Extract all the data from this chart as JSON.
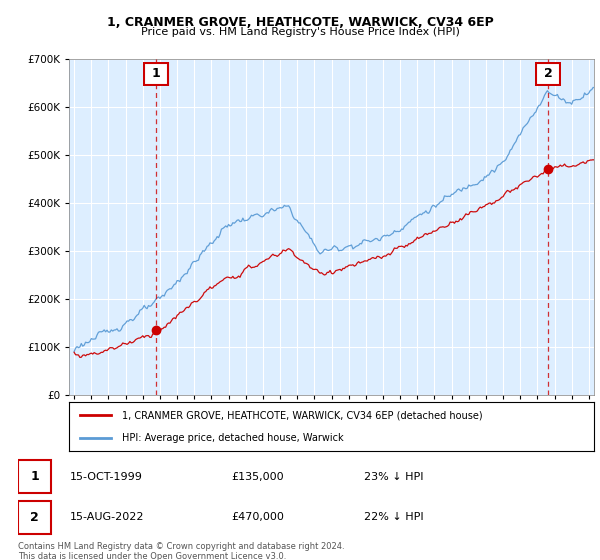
{
  "title": "1, CRANMER GROVE, HEATHCOTE, WARWICK, CV34 6EP",
  "subtitle": "Price paid vs. HM Land Registry's House Price Index (HPI)",
  "sale1_date": "15-OCT-1999",
  "sale1_price": 135000,
  "sale1_label": "23% ↓ HPI",
  "sale1_year": 1999.79,
  "sale2_date": "15-AUG-2022",
  "sale2_price": 470000,
  "sale2_label": "22% ↓ HPI",
  "sale2_year": 2022.62,
  "legend_line1": "1, CRANMER GROVE, HEATHCOTE, WARWICK, CV34 6EP (detached house)",
  "legend_line2": "HPI: Average price, detached house, Warwick",
  "footnote": "Contains HM Land Registry data © Crown copyright and database right 2024.\nThis data is licensed under the Open Government Licence v3.0.",
  "property_color": "#cc0000",
  "hpi_color": "#5b9bd5",
  "annotation_box_color": "#cc0000",
  "chart_bg_color": "#ddeeff",
  "ylim_max": 700000,
  "ylim_min": 0,
  "xlim_min": 1994.7,
  "xlim_max": 2025.3
}
